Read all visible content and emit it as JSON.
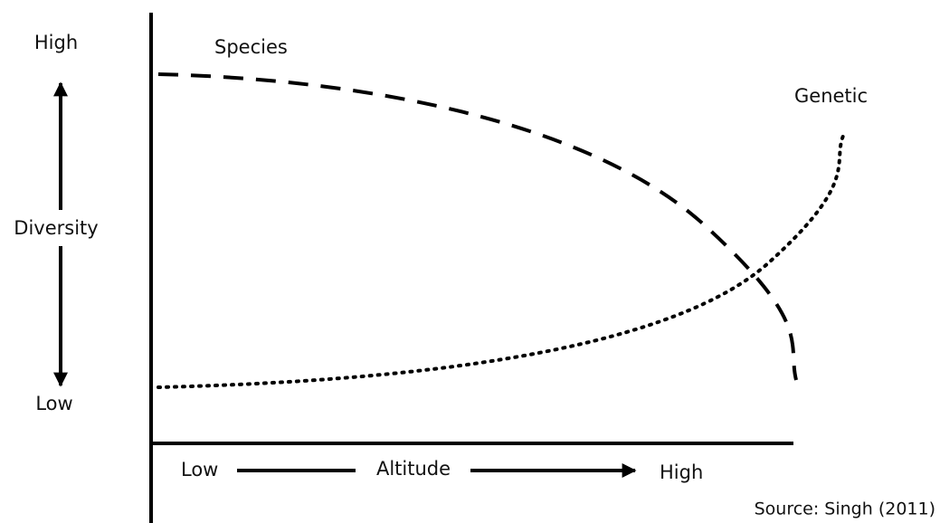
{
  "y_axis": {
    "high": "High",
    "label": "Diversity",
    "low": "Low"
  },
  "x_axis": {
    "low": "Low",
    "label": "Altitude",
    "high": "High"
  },
  "curves": [
    {
      "label": "Species"
    },
    {
      "label": "Genetic"
    }
  ],
  "source": "Source: Singh (2011)"
}
